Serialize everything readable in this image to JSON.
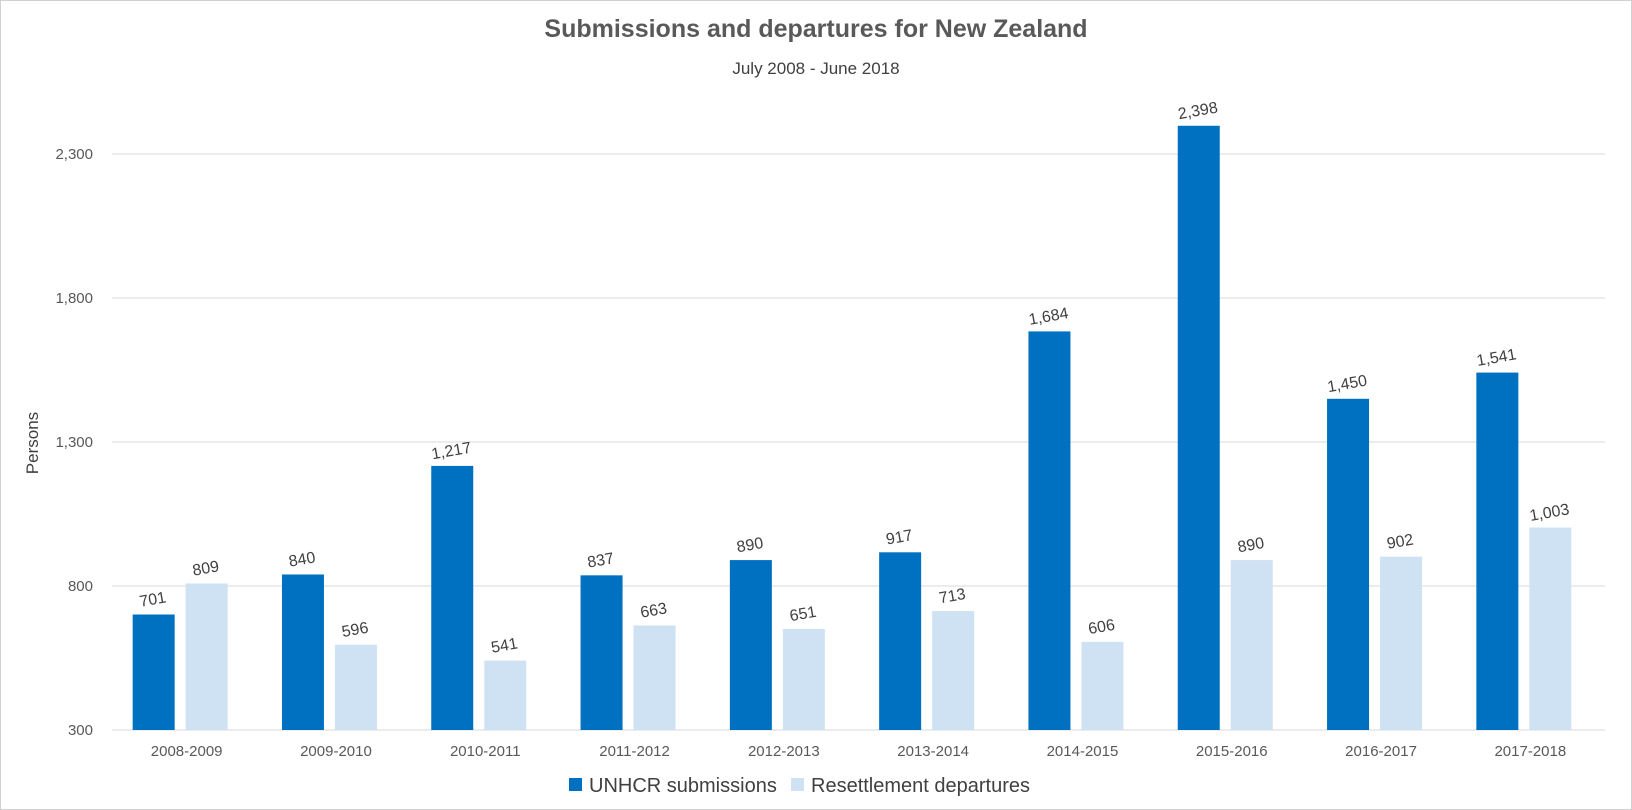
{
  "chart_data": {
    "type": "bar",
    "title": "Submissions and departures for New Zealand",
    "subtitle": "July 2008 - June 2018",
    "xlabel": "",
    "ylabel": "Persons",
    "ylim": [
      300,
      2300
    ],
    "yticks": [
      300,
      800,
      1300,
      1800,
      2300
    ],
    "ytick_labels": [
      "300",
      "800",
      "1,300",
      "1,800",
      "2,300"
    ],
    "grid": true,
    "legend_position": "bottom",
    "categories": [
      "2008-2009",
      "2009-2010",
      "2010-2011",
      "2011-2012",
      "2012-2013",
      "2013-2014",
      "2014-2015",
      "2015-2016",
      "2016-2017",
      "2017-2018"
    ],
    "series": [
      {
        "name": "UNHCR submissions",
        "color": "#0070C0",
        "values": [
          701,
          840,
          1217,
          837,
          890,
          917,
          1684,
          2398,
          1450,
          1541
        ],
        "labels": [
          "701",
          "840",
          "1,217",
          "837",
          "890",
          "917",
          "1,684",
          "2,398",
          "1,450",
          "1,541"
        ]
      },
      {
        "name": "Resettlement departures",
        "color": "#CFE2F3",
        "values": [
          809,
          596,
          541,
          663,
          651,
          713,
          606,
          890,
          902,
          1003
        ],
        "labels": [
          "809",
          "596",
          "541",
          "663",
          "651",
          "713",
          "606",
          "890",
          "902",
          "1,003"
        ]
      }
    ]
  }
}
